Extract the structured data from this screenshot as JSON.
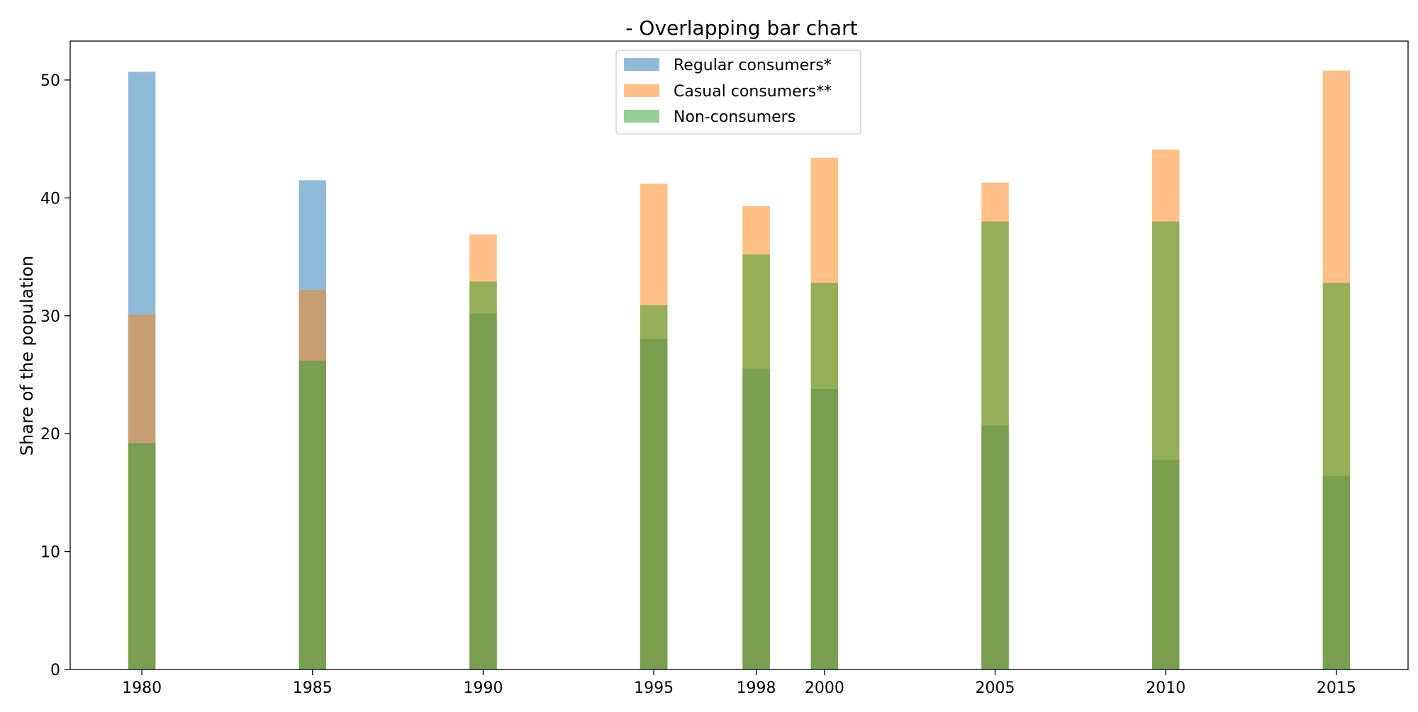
{
  "chart_data": {
    "type": "bar",
    "mode": "overlapping",
    "title": "- Overlapping bar chart",
    "xlabel": "",
    "ylabel": "Share of the population",
    "x_values": [
      1980,
      1985,
      1990,
      1995,
      1998,
      2000,
      2005,
      2010,
      2015
    ],
    "xlim": [
      1977.9,
      2017.1
    ],
    "ylim": [
      0,
      53.3
    ],
    "y_ticks": [
      0,
      10,
      20,
      30,
      40,
      50
    ],
    "bar_width": 0.8,
    "grid": false,
    "legend_position": "top-center",
    "series": [
      {
        "name": "Regular consumers*",
        "color": "#1f77b4",
        "opacity": 0.5,
        "values": [
          50.7,
          41.5,
          30.2,
          28.0,
          25.5,
          23.8,
          20.7,
          17.8,
          16.4
        ]
      },
      {
        "name": "Casual consumers**",
        "color": "#ff7f0e",
        "opacity": 0.5,
        "values": [
          30.1,
          32.2,
          36.9,
          41.2,
          39.3,
          43.4,
          41.3,
          44.1,
          50.8
        ]
      },
      {
        "name": "Non-consumers",
        "color": "#2ca02c",
        "opacity": 0.5,
        "values": [
          19.2,
          26.2,
          32.9,
          30.9,
          35.2,
          32.8,
          38.0,
          38.0,
          32.8
        ]
      }
    ]
  }
}
